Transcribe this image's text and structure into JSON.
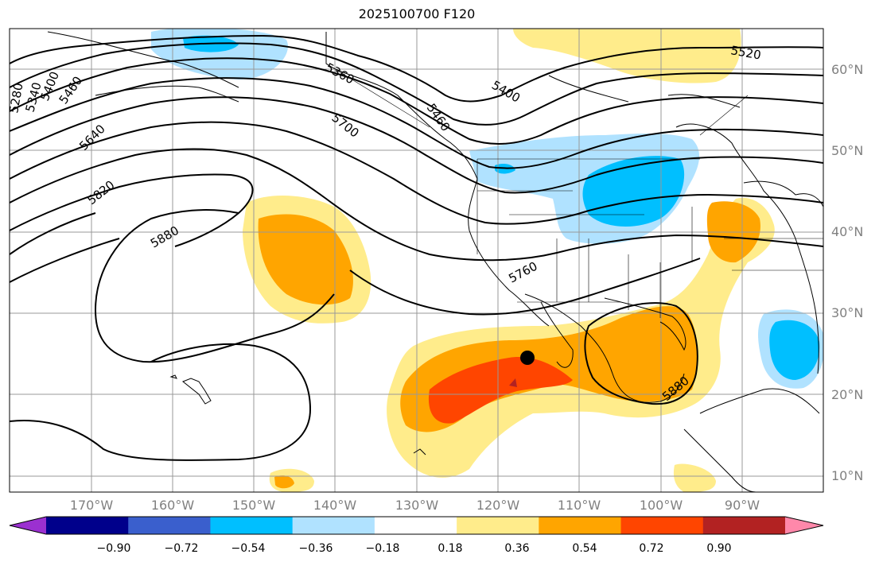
{
  "title": "2025100700 F120",
  "map": {
    "lat_labels": [
      "60°N",
      "50°N",
      "40°N",
      "30°N",
      "20°N",
      "10°N"
    ],
    "lon_labels": [
      "170°W",
      "160°W",
      "150°W",
      "140°W",
      "130°W",
      "120°W",
      "110°W",
      "100°W",
      "90°W"
    ],
    "contour_labels": [
      "5280",
      "5340",
      "5400",
      "5460",
      "5640",
      "5820",
      "5880",
      "5360",
      "5400",
      "5460",
      "5520",
      "5700",
      "5760",
      "5880"
    ]
  },
  "colorbar": {
    "ticks": [
      "−0.90",
      "−0.72",
      "−0.54",
      "−0.36",
      "−0.18",
      "0.18",
      "0.36",
      "0.54",
      "0.72",
      "0.90"
    ],
    "colors": [
      "#9b30d0",
      "#00008b",
      "#3a5fcd",
      "#00bfff",
      "#b0e2ff",
      "#ffffff",
      "#ffec8b",
      "#ffa500",
      "#ff4500",
      "#b22222",
      "#ff88aa"
    ]
  },
  "colors": {
    "light_blue": "#b0e2ff",
    "blue": "#00bfff",
    "light_yellow": "#ffec8b",
    "orange": "#ffa500",
    "red_orange": "#ff4500"
  }
}
